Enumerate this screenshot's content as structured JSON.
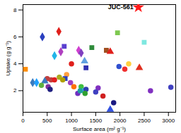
{
  "chart_data": {
    "type": "scatter",
    "xlabel": "Surface area (m² g⁻¹)",
    "ylabel": "Uptake (g g⁻¹)",
    "xlim": [
      0,
      3150
    ],
    "ylim": [
      0.4,
      8.4
    ],
    "xticks": [
      0,
      500,
      1000,
      1500,
      2000,
      2500,
      3000
    ],
    "yticks": [
      2,
      4,
      6,
      8
    ],
    "grid": false,
    "x": [
      50,
      400,
      740,
      650,
      780,
      850,
      1150,
      1200,
      1000,
      1420,
      1720,
      1800,
      1950,
      2500,
      2180,
      2400,
      2100,
      1980,
      1270,
      1300,
      900,
      870,
      750,
      820,
      500,
      580,
      650,
      450,
      200,
      280,
      380,
      520,
      560,
      980,
      1050,
      1200,
      1250,
      1300,
      1130,
      1180,
      1280,
      1550,
      1500,
      1650,
      1870,
      1800,
      2630,
      3050,
      2380
    ],
    "y": [
      3.6,
      6.0,
      6.4,
      4.6,
      4.9,
      5.3,
      5.0,
      4.8,
      4.0,
      5.2,
      5.0,
      4.9,
      6.3,
      5.6,
      4.0,
      3.7,
      3.6,
      3.8,
      4.2,
      3.7,
      3.2,
      2.9,
      3.0,
      2.8,
      2.9,
      2.8,
      2.8,
      2.7,
      2.6,
      2.6,
      2.4,
      2.3,
      2.1,
      2.6,
      2.3,
      2.3,
      2.0,
      2.1,
      1.8,
      2.0,
      1.8,
      2.2,
      1.9,
      1.6,
      1.1,
      0.6,
      2.0,
      2.25,
      8.2
    ],
    "colors": [
      "#ff8c00",
      "#2a3fbf",
      "#e0201c",
      "#22b5e8",
      "#b040c0",
      "#5a3fcf",
      "#d040d0",
      "#8040c0",
      "#e0201c",
      "#2e8b3a",
      "#a05020",
      "#e0201c",
      "#7ec850",
      "#7fe8e0",
      "#ffd040",
      "#e03020",
      "#f03030",
      "#3050d0",
      "#60a0e0",
      "#3030b0",
      "#ffa040",
      "#2a3fbf",
      "#aaaa20",
      "#b0a000",
      "#c04040",
      "#c04040",
      "#e02020",
      "#3a7abf",
      "#3a7abf",
      "#20a0ff",
      "#60b040",
      "#8030a0",
      "#202080",
      "#a040c0",
      "#ff7000",
      "#40c040",
      "#40b0e0",
      "#3040b0",
      "#7030c0",
      "#20a0a0",
      "#30a030",
      "#8030c0",
      "#4040c0",
      "#d02020",
      "#1a1a80",
      "#3050e0",
      "#8030c0",
      "#4040c0",
      "#ff1a1a"
    ],
    "markers": [
      "square",
      "diamond",
      "diamond",
      "diamond",
      "diamond",
      "square",
      "diamond",
      "diamond",
      "circle",
      "square",
      "square",
      "triangle",
      "square",
      "square",
      "circle",
      "triangle",
      "circle",
      "circle",
      "triangle",
      "square",
      "circle",
      "square",
      "circle",
      "circle",
      "circle",
      "circle",
      "circle",
      "triangle",
      "diamond",
      "diamond",
      "circle",
      "circle",
      "circle",
      "circle",
      "circle",
      "circle",
      "circle",
      "circle",
      "circle",
      "circle",
      "circle",
      "circle",
      "circle",
      "circle",
      "circle",
      "triangle",
      "circle",
      "circle",
      "star"
    ],
    "annotations": [
      {
        "text": "JUC-561",
        "x": 2380,
        "y": 8.2
      }
    ]
  }
}
